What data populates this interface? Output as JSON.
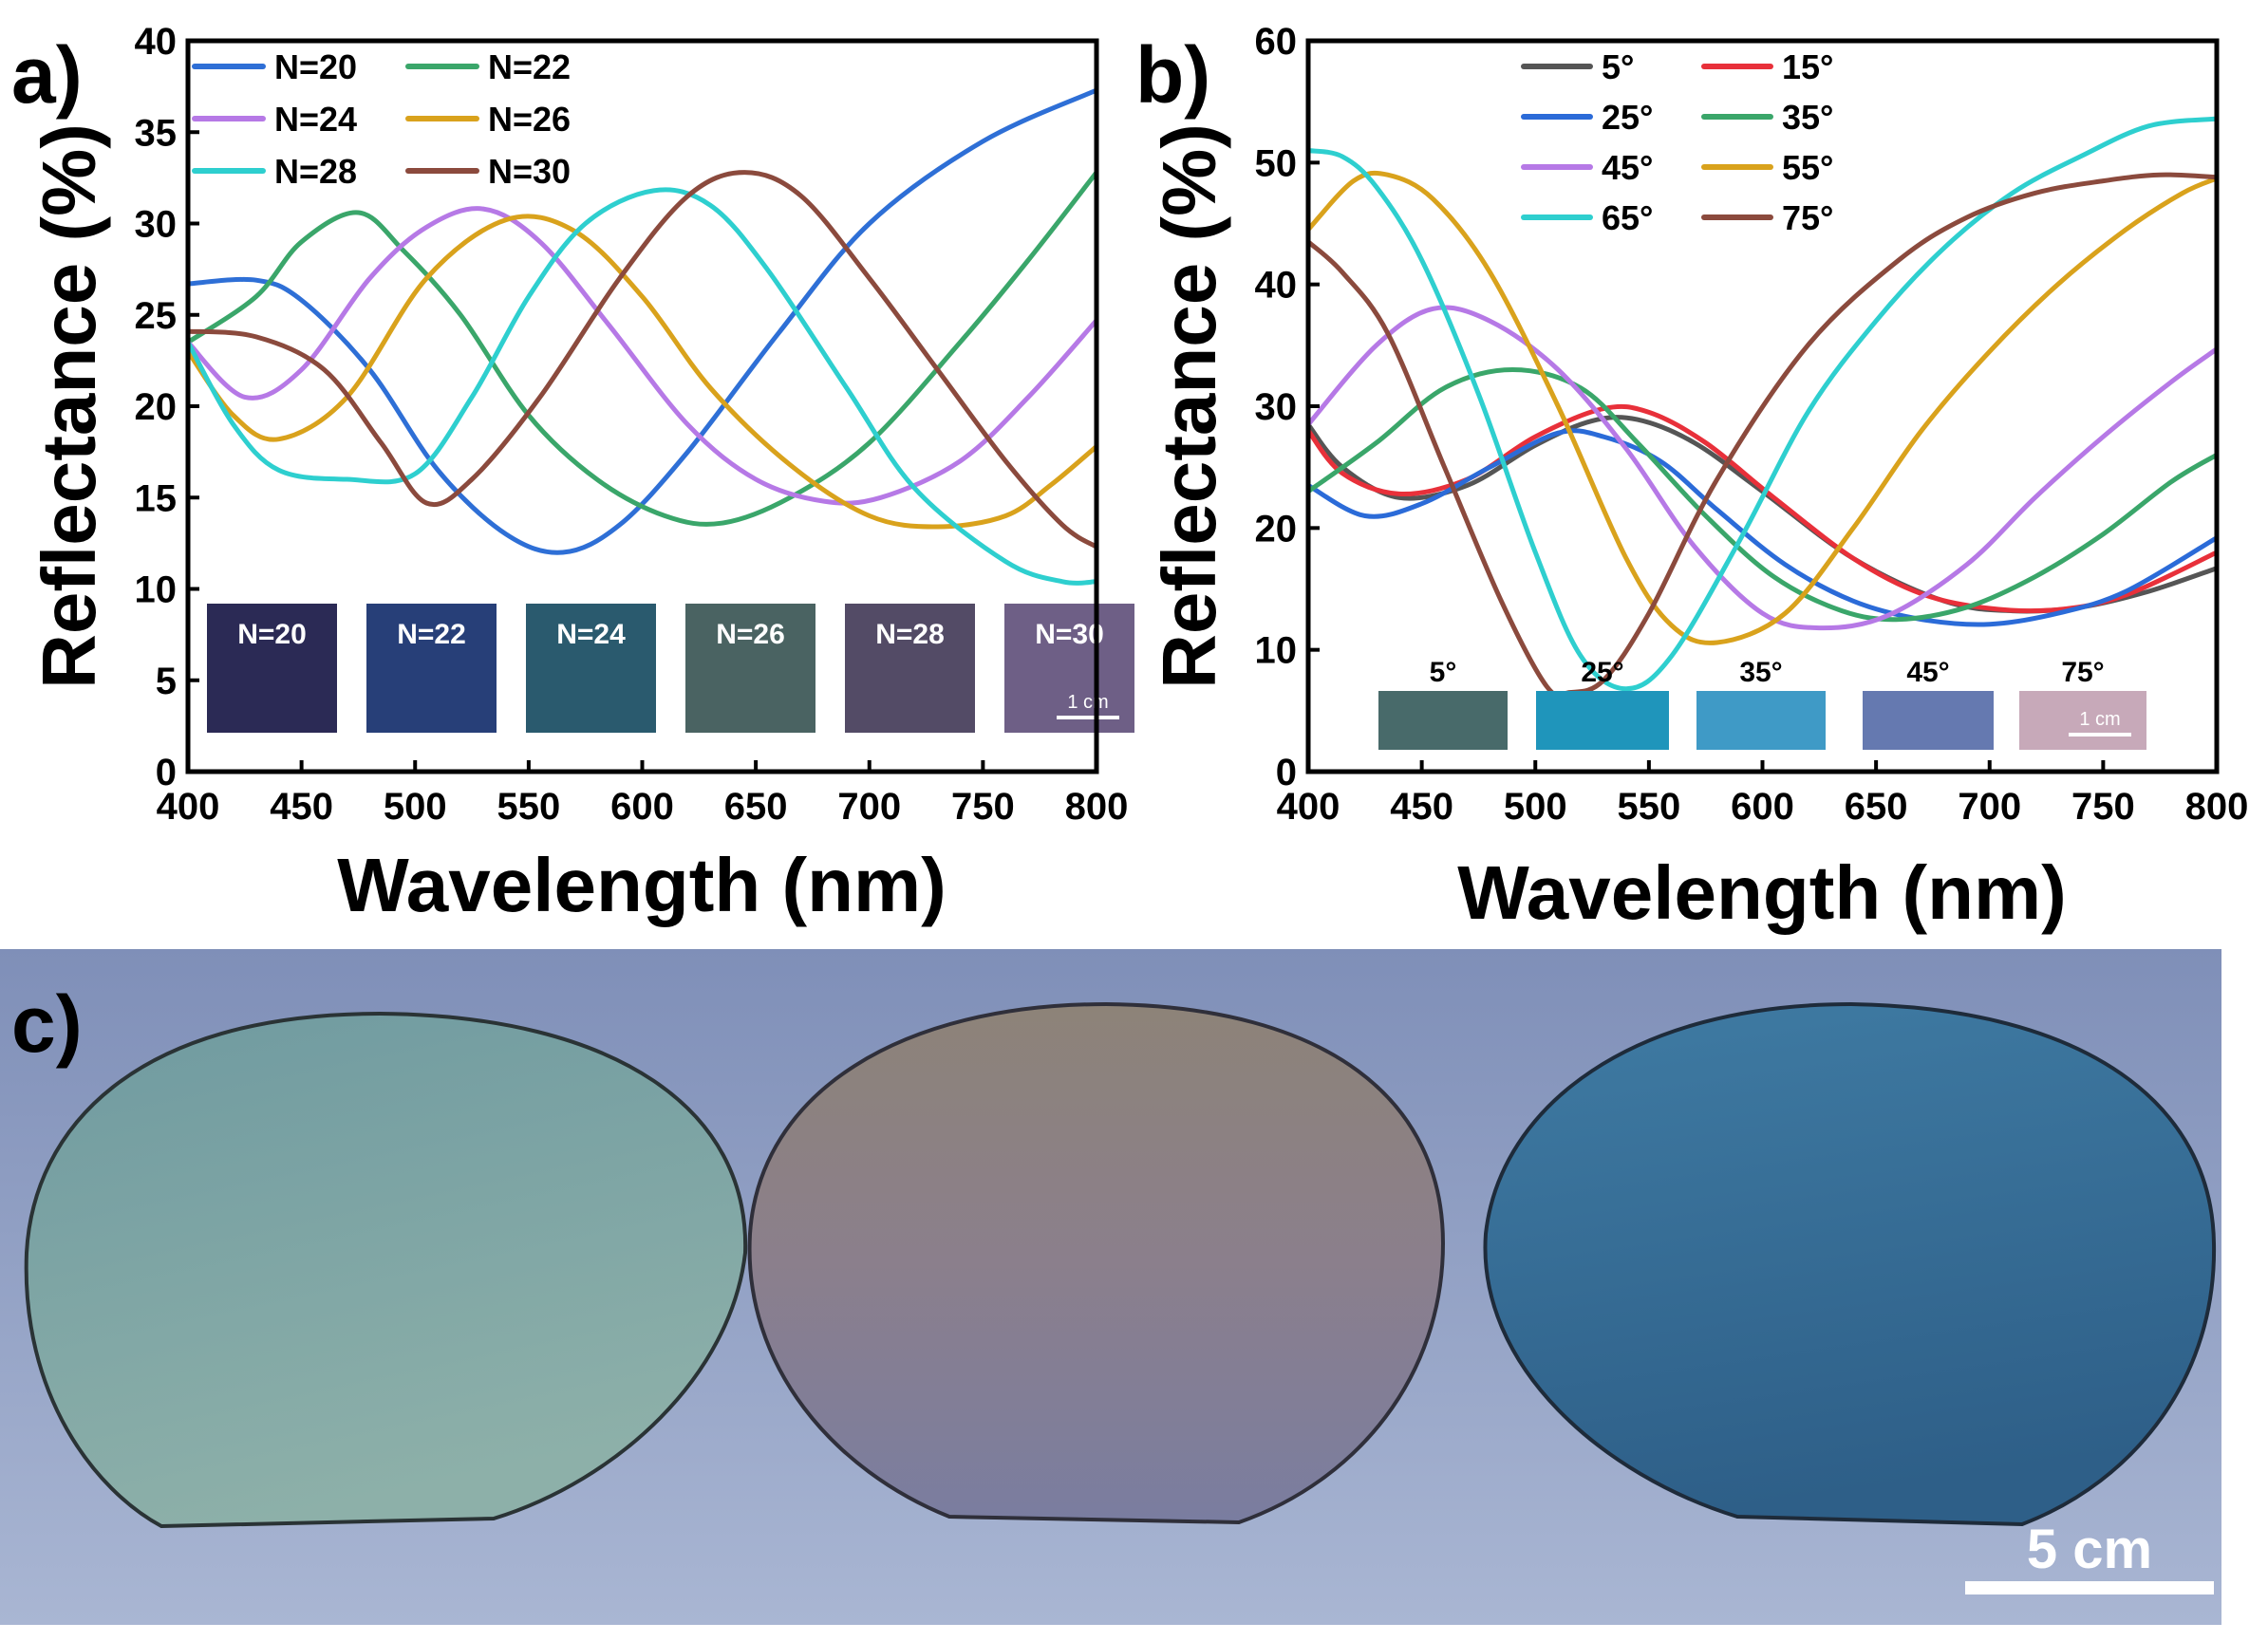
{
  "panels": {
    "a": {
      "label": "a)"
    },
    "b": {
      "label": "b)"
    },
    "c": {
      "label": "c)",
      "scale_bar_label": "5 cm",
      "wafer_colors": [
        "#7aa3a3",
        "#8d8591",
        "#3d6f93"
      ]
    }
  },
  "chart_data": [
    {
      "id": "a",
      "type": "line",
      "title": "",
      "xlabel": "Wavelength (nm)",
      "ylabel": "Reflectance (%)",
      "xlim": [
        400,
        800
      ],
      "ylim": [
        0,
        40
      ],
      "xticks": [
        400,
        450,
        500,
        550,
        600,
        650,
        700,
        750,
        800
      ],
      "yticks": [
        0,
        5,
        10,
        15,
        20,
        25,
        30,
        35,
        40
      ],
      "legend_position": "top-left",
      "series": [
        {
          "name": "N=20",
          "color": "#2e6fd6",
          "x": [
            400,
            430,
            450,
            480,
            510,
            540,
            565,
            590,
            620,
            660,
            700,
            750,
            800
          ],
          "y": [
            26.7,
            26.9,
            25.8,
            22,
            16.5,
            13,
            12,
            13.5,
            17.5,
            24,
            30,
            34.5,
            37.3
          ]
        },
        {
          "name": "N=22",
          "color": "#3aa66a",
          "x": [
            400,
            430,
            450,
            475,
            495,
            520,
            550,
            580,
            610,
            635,
            665,
            700,
            740,
            770,
            800
          ],
          "y": [
            23.5,
            26,
            29,
            30.6,
            28.5,
            25,
            19.5,
            16,
            14,
            13.6,
            15,
            18,
            23.5,
            28,
            32.8
          ]
        },
        {
          "name": "N=24",
          "color": "#b679e6",
          "x": [
            400,
            425,
            450,
            480,
            505,
            530,
            555,
            585,
            620,
            650,
            680,
            705,
            740,
            770,
            800
          ],
          "y": [
            23.5,
            20.5,
            22,
            27,
            29.8,
            30.8,
            29,
            24.5,
            19,
            16,
            14.8,
            15,
            17,
            20.5,
            24.7
          ]
        },
        {
          "name": "N=26",
          "color": "#d9a21c",
          "x": [
            400,
            420,
            440,
            470,
            505,
            540,
            570,
            600,
            630,
            665,
            700,
            730,
            760,
            780,
            800
          ],
          "y": [
            23,
            19.5,
            18.2,
            20.5,
            27,
            30.2,
            29.6,
            26,
            21,
            16.8,
            14,
            13.4,
            14,
            15.7,
            17.8
          ]
        },
        {
          "name": "N=28",
          "color": "#2ecfcf",
          "x": [
            400,
            420,
            440,
            470,
            500,
            525,
            550,
            575,
            605,
            630,
            655,
            690,
            720,
            760,
            785,
            800
          ],
          "y": [
            23.5,
            19,
            16.5,
            16,
            16.3,
            20.5,
            26,
            30,
            31.8,
            31,
            27.5,
            21,
            15.5,
            11.5,
            10.4,
            10.4
          ]
        },
        {
          "name": "N=30",
          "color": "#8b4a3d",
          "x": [
            400,
            430,
            460,
            485,
            505,
            525,
            555,
            590,
            620,
            645,
            670,
            700,
            730,
            760,
            785,
            800
          ],
          "y": [
            24.1,
            23.8,
            22,
            18,
            14.7,
            16,
            20.5,
            27,
            31.5,
            32.8,
            31.5,
            27,
            22,
            17,
            13.5,
            12.3
          ]
        }
      ],
      "insets": {
        "swatches": [
          {
            "label": "N=20",
            "color": "#2b2a55"
          },
          {
            "label": "N=22",
            "color": "#273f78"
          },
          {
            "label": "N=24",
            "color": "#2a5a6e"
          },
          {
            "label": "N=26",
            "color": "#4a6362"
          },
          {
            "label": "N=28",
            "color": "#534b66"
          },
          {
            "label": "N=30",
            "color": "#6e5f86"
          }
        ],
        "scale_label": "1 cm"
      }
    },
    {
      "id": "b",
      "type": "line",
      "title": "",
      "xlabel": "Wavelength (nm)",
      "ylabel": "Reflectance (%)",
      "xlim": [
        400,
        800
      ],
      "ylim": [
        0,
        60
      ],
      "xticks": [
        400,
        450,
        500,
        550,
        600,
        650,
        700,
        750,
        800
      ],
      "yticks": [
        0,
        10,
        20,
        30,
        40,
        50,
        60
      ],
      "legend_position": "top-right",
      "series": [
        {
          "name": "5°",
          "color": "#555555",
          "x": [
            400,
            415,
            440,
            470,
            500,
            525,
            545,
            570,
            600,
            640,
            680,
            710,
            740,
            770,
            800
          ],
          "y": [
            28.5,
            25,
            22.5,
            23.5,
            26.8,
            28.8,
            28.9,
            27,
            23,
            17.5,
            14,
            13.2,
            13.5,
            14.8,
            16.7
          ]
        },
        {
          "name": "15°",
          "color": "#e8303a",
          "x": [
            400,
            415,
            440,
            470,
            500,
            530,
            550,
            575,
            605,
            640,
            670,
            700,
            730,
            760,
            800
          ],
          "y": [
            28,
            24.5,
            22.8,
            24,
            27.5,
            29.8,
            29.5,
            27,
            22.5,
            17.5,
            14.6,
            13.4,
            13.3,
            14.5,
            18
          ]
        },
        {
          "name": "25°",
          "color": "#2b6bd8",
          "x": [
            400,
            425,
            450,
            480,
            510,
            530,
            555,
            580,
            610,
            640,
            670,
            700,
            730,
            760,
            800
          ],
          "y": [
            23.5,
            21,
            22,
            25,
            27.8,
            27.5,
            25.5,
            21.5,
            17,
            14,
            12.5,
            12.1,
            13,
            14.8,
            19.2
          ]
        },
        {
          "name": "35°",
          "color": "#3aa66a",
          "x": [
            400,
            430,
            460,
            490,
            520,
            545,
            575,
            605,
            635,
            660,
            690,
            720,
            750,
            780,
            800
          ],
          "y": [
            23,
            27,
            31.5,
            33,
            31.5,
            27,
            21,
            16,
            13.2,
            12.5,
            13.5,
            16,
            19.5,
            23.8,
            26
          ]
        },
        {
          "name": "45°",
          "color": "#b679e6",
          "x": [
            400,
            430,
            455,
            480,
            510,
            540,
            570,
            600,
            625,
            655,
            690,
            720,
            750,
            780,
            800
          ],
          "y": [
            28.5,
            35,
            38,
            37,
            33,
            26.5,
            18.5,
            13,
            11.8,
            12.8,
            17,
            22.5,
            27.5,
            32,
            34.7
          ]
        },
        {
          "name": "55°",
          "color": "#d9a21c",
          "x": [
            400,
            420,
            435,
            455,
            480,
            510,
            540,
            560,
            580,
            610,
            640,
            670,
            700,
            730,
            760,
            785,
            800
          ],
          "y": [
            44.5,
            48.5,
            49,
            47,
            41,
            30,
            17.5,
            12,
            10.6,
            13,
            20,
            28,
            34.5,
            40,
            44.5,
            47.5,
            48.7
          ]
        },
        {
          "name": "65°",
          "color": "#2ecfcf",
          "x": [
            400,
            415,
            430,
            450,
            475,
            500,
            520,
            540,
            560,
            590,
            620,
            650,
            680,
            710,
            740,
            770,
            800
          ],
          "y": [
            51,
            50.5,
            48,
            42,
            31,
            18,
            9.5,
            6.8,
            9.5,
            19,
            29.5,
            37,
            43,
            47.5,
            50.5,
            53,
            53.6
          ]
        },
        {
          "name": "75°",
          "color": "#8b4a3d",
          "x": [
            400,
            415,
            435,
            460,
            485,
            505,
            515,
            530,
            550,
            580,
            620,
            660,
            690,
            720,
            750,
            775,
            800
          ],
          "y": [
            43.5,
            41,
            36,
            25,
            14,
            7,
            6.5,
            7.5,
            13,
            24,
            35,
            42,
            45.5,
            47.5,
            48.5,
            49,
            48.8
          ]
        }
      ],
      "insets": {
        "swatches": [
          {
            "label": "5°",
            "color": "#486a6a"
          },
          {
            "label": "25°",
            "color": "#1f95bb"
          },
          {
            "label": "35°",
            "color": "#3f9ac6"
          },
          {
            "label": "45°",
            "color": "#6579b0"
          },
          {
            "label": "75°",
            "color": "#c7a9b9"
          }
        ],
        "scale_label": "1 cm"
      }
    }
  ]
}
